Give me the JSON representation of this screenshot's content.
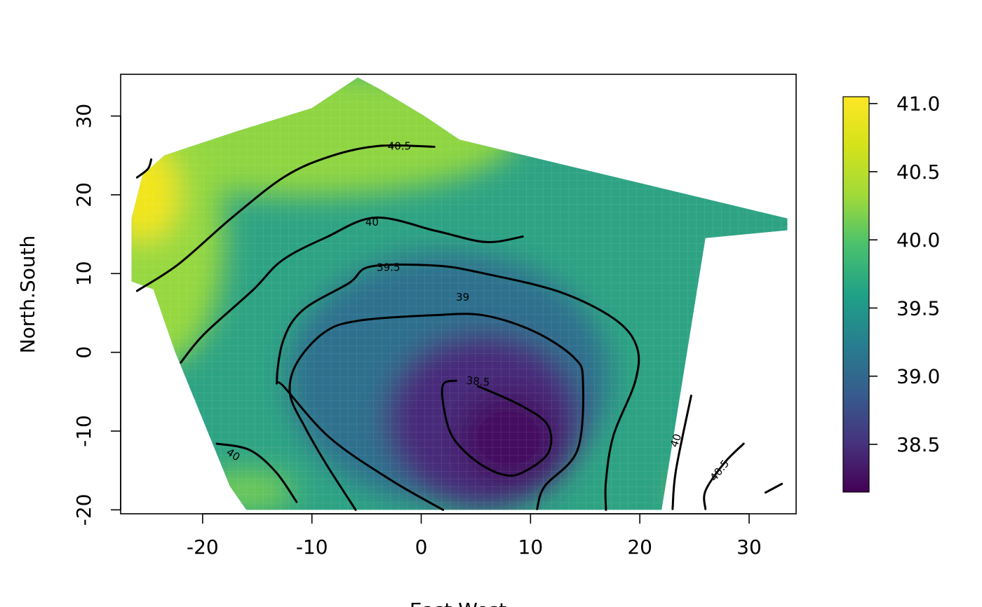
{
  "chart_data": {
    "type": "heatmap",
    "title": "",
    "xlabel": "East.West",
    "ylabel": "North.South",
    "xlim": [
      -27.5,
      34.3
    ],
    "ylim": [
      -20.5,
      35.3
    ],
    "x_ticks": [
      "-20",
      "-10",
      "0",
      "10",
      "20",
      "30"
    ],
    "x_tick_values": [
      -20,
      -10,
      0,
      10,
      20,
      30
    ],
    "y_ticks": [
      "-20",
      "-10",
      "0",
      "10",
      "20",
      "30"
    ],
    "y_tick_values": [
      -20,
      -10,
      0,
      10,
      20,
      30
    ],
    "grid": false,
    "colorscale": "viridis",
    "colorbar": {
      "range": [
        38.15,
        41.05
      ],
      "ticks": [
        "38.5",
        "39.0",
        "39.5",
        "40.0",
        "40.5",
        "41.0"
      ],
      "tick_values": [
        38.5,
        39.0,
        39.5,
        40.0,
        40.5,
        41.0
      ],
      "placement": "right"
    },
    "surface": {
      "min_value": 38.15,
      "min_at": [
        7.5,
        -12
      ],
      "max_value": 41.05,
      "domain_polygon": [
        [
          -26.5,
          9
        ],
        [
          -26.5,
          17
        ],
        [
          -25.5,
          22.5
        ],
        [
          -23.5,
          25
        ],
        [
          -17,
          28
        ],
        [
          -10,
          31
        ],
        [
          -5.8,
          34.9
        ],
        [
          -3.9,
          33.5
        ],
        [
          0.3,
          30
        ],
        [
          3.5,
          27
        ],
        [
          33.5,
          17
        ],
        [
          33.5,
          15.5
        ],
        [
          26,
          14.5
        ],
        [
          22,
          -20
        ],
        [
          -16,
          -20
        ],
        [
          -17.5,
          -17
        ],
        [
          -22.5,
          0
        ],
        [
          -24.5,
          8
        ]
      ]
    },
    "contours": [
      {
        "level": 38.5,
        "label": "38.5",
        "points": [
          [
            3.2,
            -3.6
          ],
          [
            2.0,
            -4.1
          ],
          [
            2.1,
            -7.3
          ],
          [
            2.9,
            -10.8
          ],
          [
            5.0,
            -13.8
          ],
          [
            7.4,
            -15.5
          ],
          [
            9.2,
            -15.3
          ],
          [
            11.6,
            -12.8
          ],
          [
            11.6,
            -9.3
          ],
          [
            9.2,
            -6.8
          ],
          [
            5.2,
            -4.3
          ]
        ],
        "label_at": [
          5.2,
          -3.7
        ],
        "label_angle": 5
      },
      {
        "level": 39.0,
        "label": "39",
        "points": [
          [
            -6.0,
            -20.0
          ],
          [
            -8.6,
            -14.4
          ],
          [
            -10.6,
            -9.6
          ],
          [
            -12.0,
            -5.3
          ],
          [
            -11.4,
            -1.4
          ],
          [
            -8.9,
            2.5
          ],
          [
            -5.8,
            4.0
          ],
          [
            1.0,
            4.7
          ],
          [
            5.7,
            4.7
          ],
          [
            10.4,
            2.6
          ],
          [
            14.0,
            -0.7
          ],
          [
            14.8,
            -3.7
          ],
          [
            14.3,
            -12.4
          ],
          [
            11.3,
            -17.0
          ],
          [
            10.6,
            -19.9
          ]
        ],
        "label_at": [
          3.8,
          7.0
        ],
        "label_angle": 0
      },
      {
        "level": 39.5,
        "label": "39.5",
        "points": [
          [
            2.0,
            -20.0
          ],
          [
            -2.8,
            -16.2
          ],
          [
            -8.4,
            -10.8
          ],
          [
            -12.6,
            -4.3
          ],
          [
            -13.2,
            -3.6
          ],
          [
            -12.6,
            1.6
          ],
          [
            -10.8,
            5.4
          ],
          [
            -6.6,
            8.8
          ],
          [
            -4.6,
            10.9
          ],
          [
            1.4,
            11.0
          ],
          [
            5.8,
            10.0
          ],
          [
            12.6,
            7.7
          ],
          [
            17.6,
            4.3
          ],
          [
            19.7,
            0.8
          ],
          [
            19.6,
            -3.6
          ],
          [
            17.6,
            -10.5
          ],
          [
            16.9,
            -16.3
          ],
          [
            16.9,
            -20.0
          ]
        ],
        "label_at": [
          -3.0,
          10.8
        ],
        "label_angle": 0
      },
      {
        "level": 40.0,
        "label": "40",
        "points": [
          [
            -22.0,
            -1.3
          ],
          [
            -19.8,
            2.4
          ],
          [
            -15.4,
            7.9
          ],
          [
            -12.7,
            11.7
          ],
          [
            -8.7,
            14.6
          ],
          [
            -4.2,
            17.1
          ],
          [
            1.4,
            15.4
          ],
          [
            5.9,
            14.0
          ],
          [
            9.3,
            14.7
          ]
        ],
        "label_at": [
          -4.5,
          16.5
        ],
        "label_angle": 0
      },
      {
        "level": 40.0,
        "label": "40",
        "points": [
          [
            -18.7,
            -11.6
          ],
          [
            -15.7,
            -12.4
          ],
          [
            -13.3,
            -15.2
          ],
          [
            -11.4,
            -19.0
          ]
        ],
        "label_at": [
          -17.2,
          -13.0
        ],
        "label_angle": 33
      },
      {
        "level": 40.0,
        "label": "40",
        "points": [
          [
            23.0,
            -19.9
          ],
          [
            23.3,
            -15.0
          ],
          [
            24.7,
            -5.5
          ]
        ],
        "label_at": [
          23.3,
          -11.2
        ],
        "label_angle": -71
      },
      {
        "level": 40.5,
        "label": "40.5",
        "points": [
          [
            -26.0,
            7.8
          ],
          [
            -22.2,
            11.2
          ],
          [
            -17.4,
            17.0
          ],
          [
            -12.5,
            22.3
          ],
          [
            -8.3,
            24.9
          ],
          [
            -3.9,
            26.2
          ],
          [
            1.2,
            26.1
          ]
        ],
        "label_at": [
          -2.0,
          26.2
        ],
        "label_angle": 0
      },
      {
        "level": 40.5,
        "label": "40.5",
        "points": [
          [
            26.0,
            -19.9
          ],
          [
            26.0,
            -17.6
          ],
          [
            27.7,
            -14.1
          ],
          [
            29.5,
            -11.6
          ]
        ],
        "label_at": [
          27.3,
          -15.0
        ],
        "label_angle": -52
      },
      {
        "level": 41.0,
        "label": "",
        "points": [
          [
            -26.0,
            22.2
          ],
          [
            -25.0,
            23.3
          ],
          [
            -24.7,
            24.5
          ]
        ]
      },
      {
        "level": 41.0,
        "label": "",
        "points": [
          [
            31.5,
            -17.8
          ],
          [
            33.0,
            -16.7
          ]
        ]
      }
    ]
  }
}
